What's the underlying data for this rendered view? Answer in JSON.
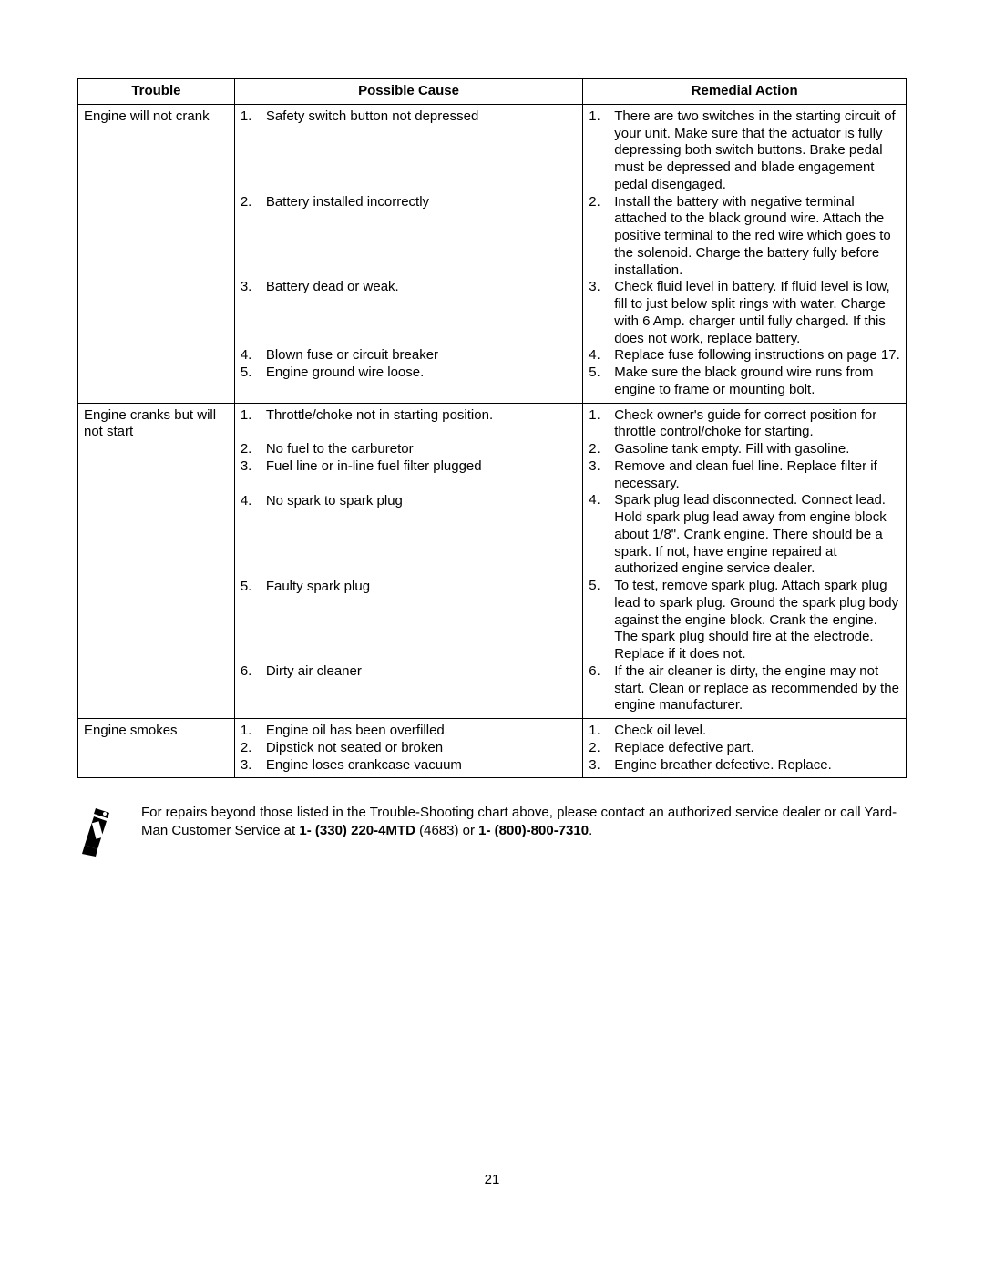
{
  "table": {
    "headers": [
      "Trouble",
      "Possible Cause",
      "Remedial Action"
    ],
    "rows": [
      {
        "trouble": "Engine will not crank",
        "causes": [
          "Safety switch button not depressed",
          "Battery installed incorrectly",
          "Battery dead or weak.",
          "Blown fuse or circuit breaker",
          "Engine ground wire loose."
        ],
        "actions": [
          "There are two switches in the starting circuit of your unit. Make sure that the actuator is fully depressing both switch buttons. Brake pedal must be depressed and blade engagement pedal disengaged.",
          "Install the battery with negative terminal attached to the black ground wire. Attach the positive terminal to the red wire which goes to the solenoid. Charge the battery fully before installation.",
          "Check fluid level in battery. If fluid level is low, fill to just below split rings with water. Charge with 6 Amp. charger until fully charged. If this does not work, replace battery.",
          "Replace fuse following instructions  on page 17.",
          "Make sure the black ground wire runs from engine to frame or mounting bolt."
        ]
      },
      {
        "trouble": "Engine cranks but will not start",
        "causes": [
          "Throttle/choke not in starting position.",
          "No fuel to the carburetor",
          "Fuel line or in-line fuel filter plugged",
          "No spark to spark plug",
          "Faulty spark plug",
          "Dirty air cleaner"
        ],
        "actions": [
          "Check owner's guide for correct position for throttle control/choke for starting.",
          "Gasoline tank empty. Fill with gasoline.",
          "Remove and clean fuel line. Replace filter if necessary.",
          "Spark plug lead disconnected. Connect lead. Hold spark plug lead away from engine block about 1/8\". Crank engine. There should be a spark. If not, have engine repaired at authorized engine service dealer.",
          "To test, remove spark plug. Attach spark plug lead to spark plug. Ground the spark plug body against the engine block. Crank the engine. The spark plug should fire at the electrode. Replace if it does not.",
          "If the air cleaner is dirty, the engine may not start. Clean or replace as recommended by the engine manufacturer."
        ]
      },
      {
        "trouble": "Engine smokes",
        "causes": [
          "Engine oil has been overfilled",
          "Dipstick not seated or broken",
          "Engine loses crankcase vacuum"
        ],
        "actions": [
          "Check oil level.",
          "Replace defective part.",
          "Engine breather defective. Replace."
        ]
      }
    ]
  },
  "footnote": {
    "prefix": "For repairs beyond those listed in the Trouble-Shooting chart above, please contact an authorized service dealer or call Yard-Man Customer Service at ",
    "phone1": "1- (330) 220-4MTD",
    "after_phone1": " (4683) or ",
    "phone2": "1- (800)-800-7310",
    "suffix": "."
  },
  "page_number": "21"
}
